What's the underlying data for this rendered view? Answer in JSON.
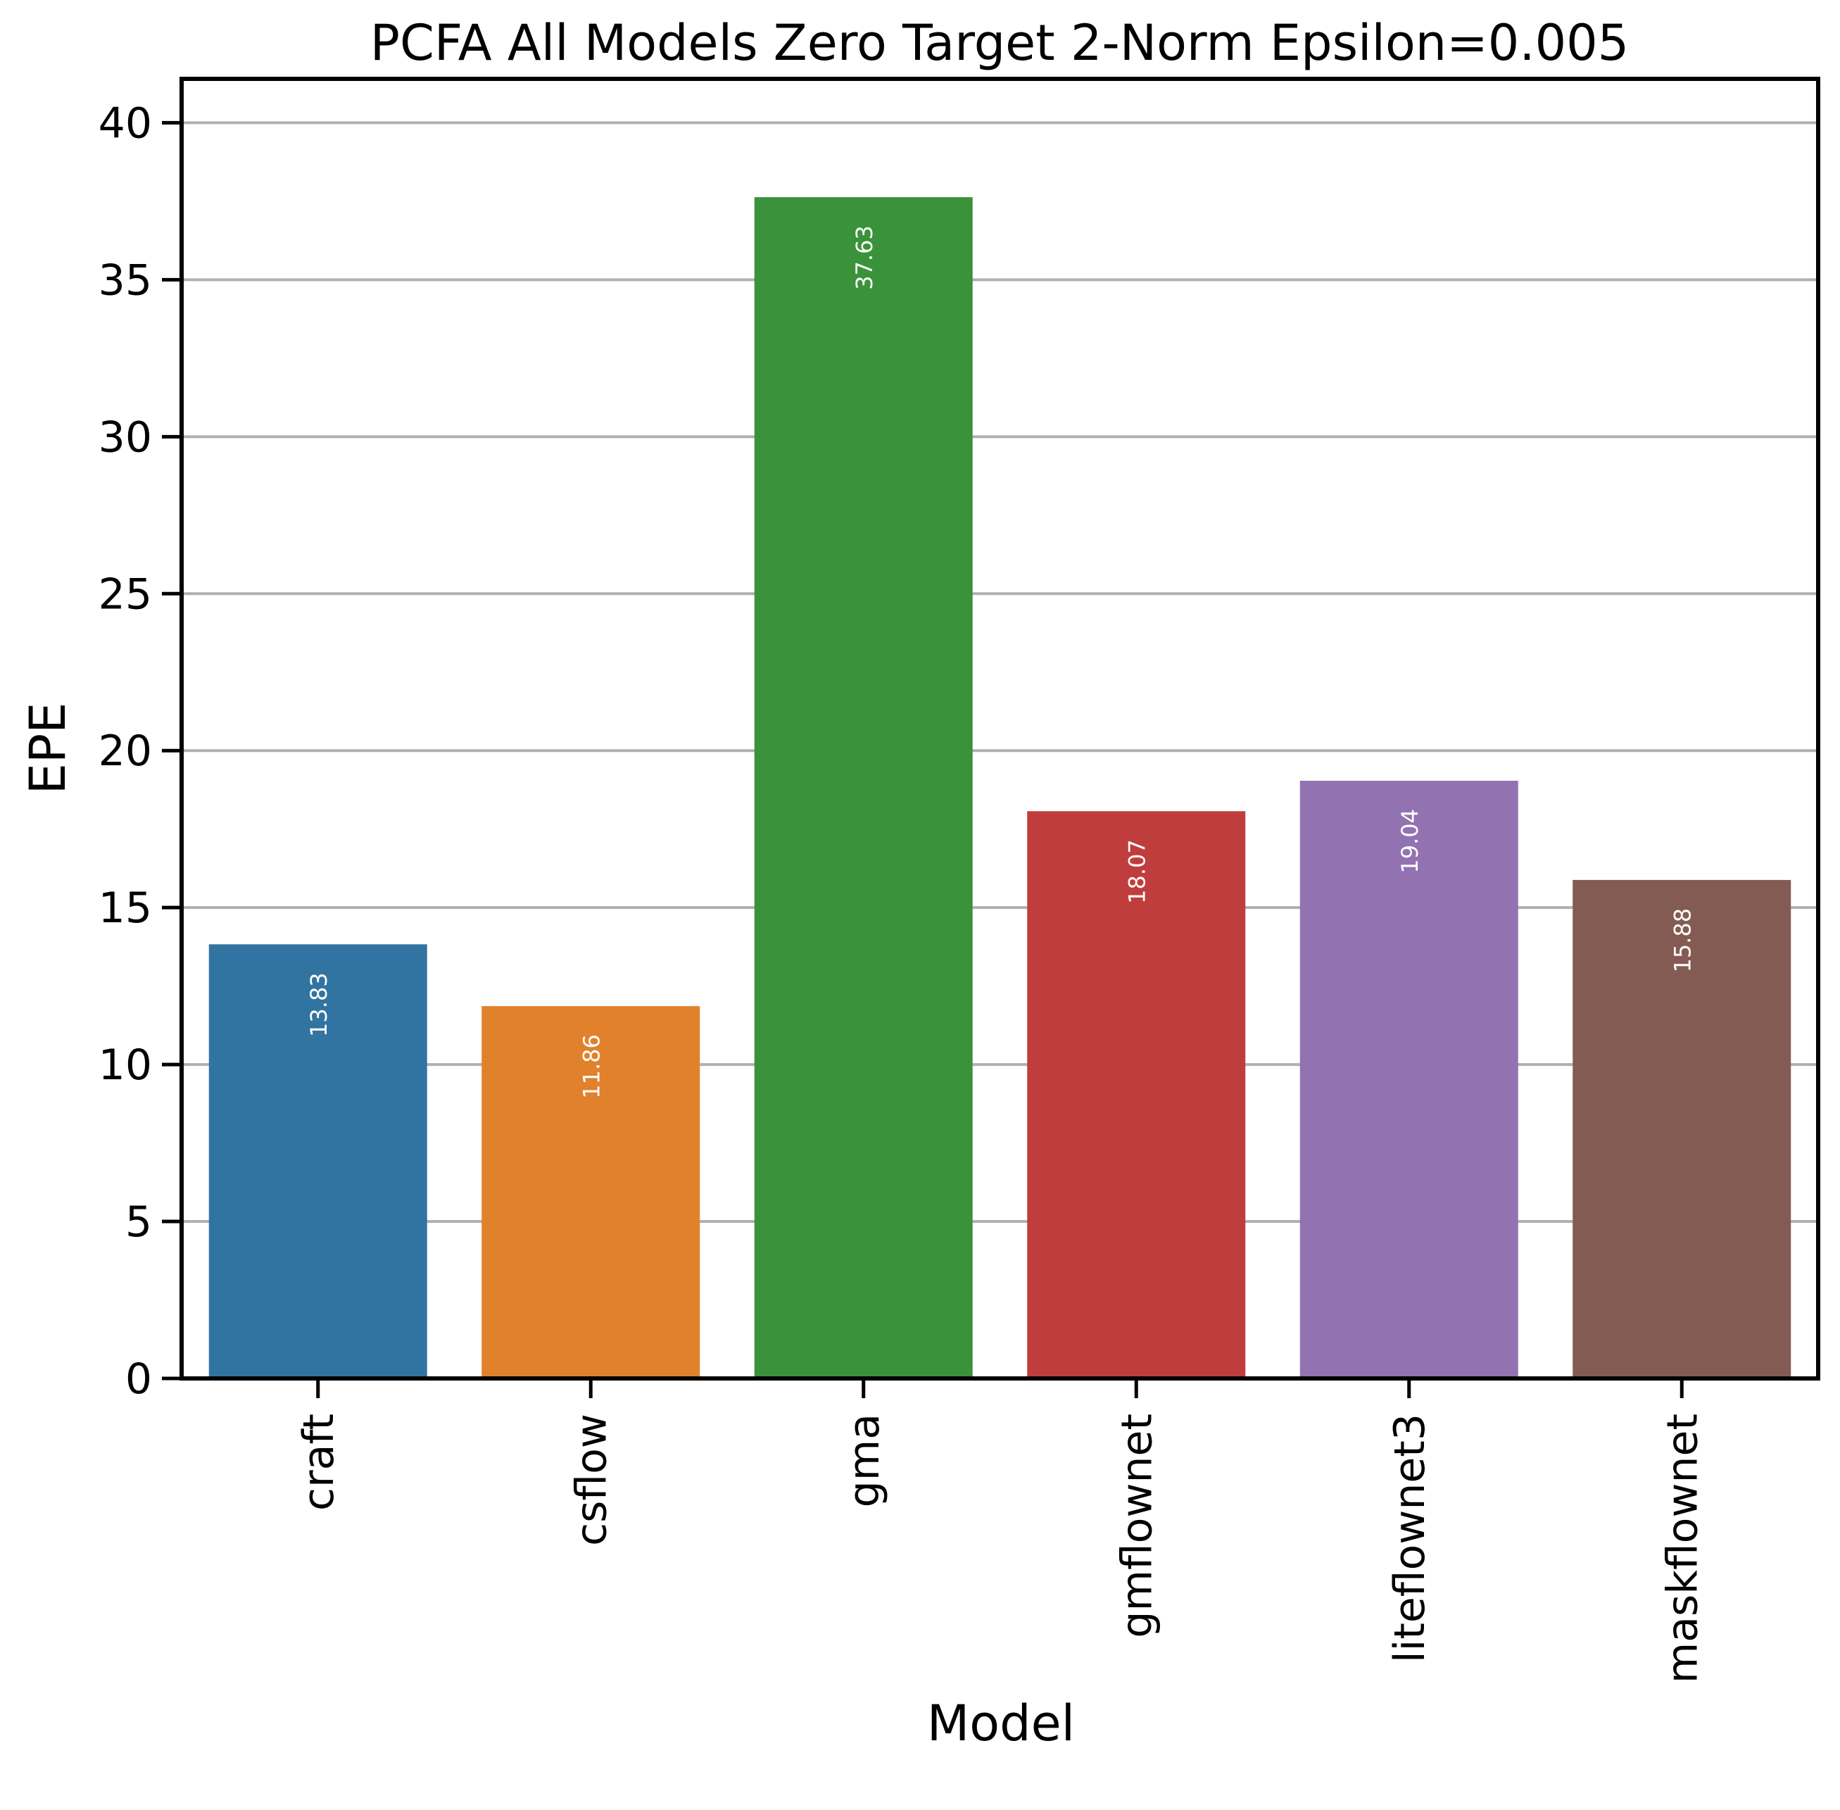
{
  "chart_data": {
    "type": "bar",
    "title": "PCFA All Models Zero Target 2-Norm Epsilon=0.005",
    "xlabel": "Model",
    "ylabel": "EPE",
    "categories": [
      "craft",
      "csflow",
      "gma",
      "gmflownet",
      "liteflownet3",
      "maskflownet"
    ],
    "values": [
      13.83,
      11.86,
      37.63,
      18.07,
      19.04,
      15.88
    ],
    "value_labels": [
      "13.83",
      "11.86",
      "37.63",
      "18.07",
      "19.04",
      "15.88"
    ],
    "colors": [
      "#3274a1",
      "#e1812c",
      "#3a923a",
      "#c03d3e",
      "#9372b2",
      "#845b53"
    ],
    "ylim": [
      0,
      41.4
    ],
    "yticks": [
      0,
      5,
      10,
      15,
      20,
      25,
      30,
      35,
      40
    ],
    "ytick_labels": [
      "0",
      "5",
      "10",
      "15",
      "20",
      "25",
      "30",
      "35",
      "40"
    ],
    "grid": "horizontal",
    "grid_color": "#b0b0b0"
  }
}
